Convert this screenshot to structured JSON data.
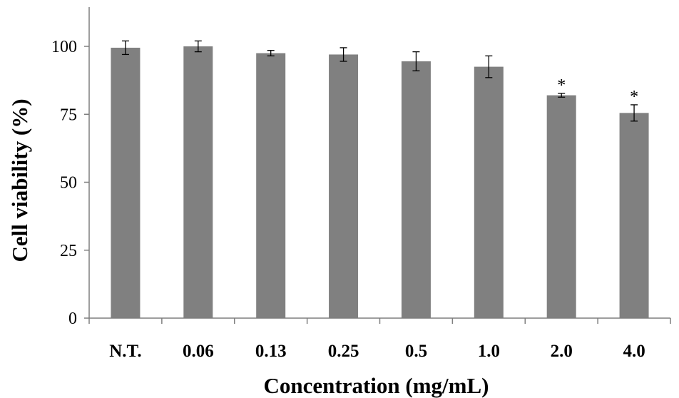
{
  "chart_data": {
    "type": "bar",
    "title": "",
    "xlabel": "Concentration (mg/mL)",
    "ylabel": "Cell viability (%)",
    "categories": [
      "N.T.",
      "0.06",
      "0.13",
      "0.25",
      "0.5",
      "1.0",
      "2.0",
      "4.0"
    ],
    "values": [
      99.5,
      100,
      97.5,
      97,
      94.5,
      92.5,
      82,
      75.5
    ],
    "error": [
      2.5,
      2.0,
      1.0,
      2.5,
      3.5,
      4.0,
      0.7,
      3.0
    ],
    "annotations": [
      "",
      "",
      "",
      "",
      "",
      "",
      "*",
      "*"
    ],
    "ylim": [
      0,
      100
    ],
    "yticks": [
      0,
      25,
      50,
      75,
      100
    ],
    "grid": false,
    "bar_color": "#808080",
    "axis_color": "#7f7f7f"
  }
}
